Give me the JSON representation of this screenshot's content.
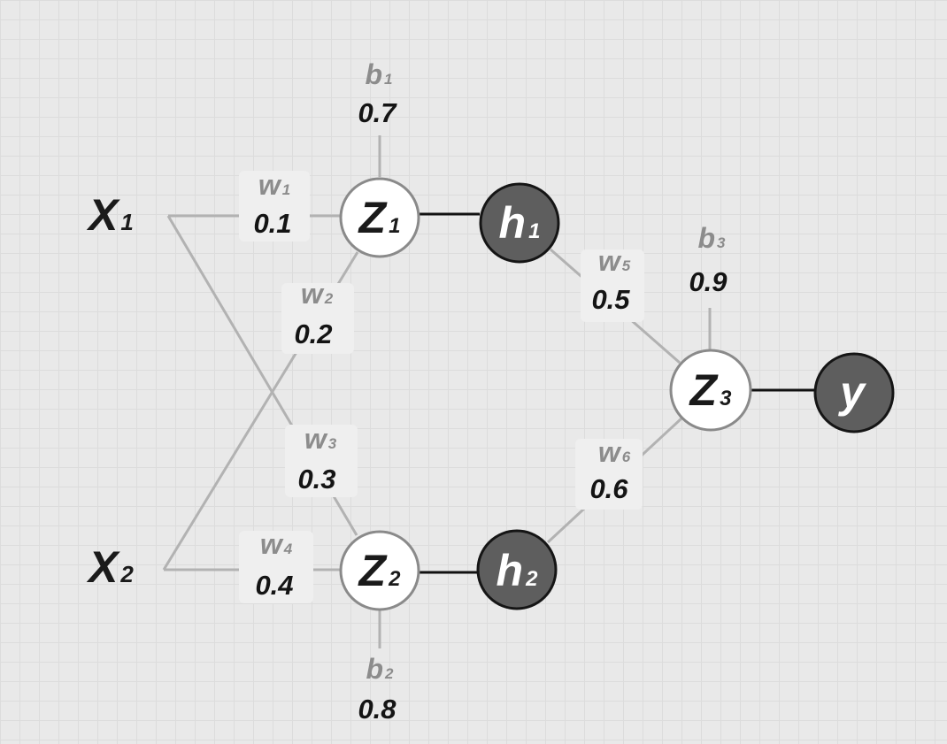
{
  "inputs": [
    {
      "letter": "X",
      "sub": "1"
    },
    {
      "letter": "X",
      "sub": "2"
    }
  ],
  "nodes": {
    "z1": {
      "letter": "Z",
      "sub": "1"
    },
    "z2": {
      "letter": "Z",
      "sub": "2"
    },
    "z3": {
      "letter": "Z",
      "sub": "3"
    },
    "h1": {
      "letter": "h",
      "sub": "1"
    },
    "h2": {
      "letter": "h",
      "sub": "2"
    },
    "y": {
      "letter": "y"
    }
  },
  "weights": [
    {
      "letter": "w",
      "sub": "1",
      "value": "0.1"
    },
    {
      "letter": "w",
      "sub": "2",
      "value": "0.2"
    },
    {
      "letter": "w",
      "sub": "3",
      "value": "0.3"
    },
    {
      "letter": "w",
      "sub": "4",
      "value": "0.4"
    },
    {
      "letter": "w",
      "sub": "5",
      "value": "0.5"
    },
    {
      "letter": "w",
      "sub": "6",
      "value": "0.6"
    }
  ],
  "biases": [
    {
      "letter": "b",
      "sub": "1",
      "value": "0.7"
    },
    {
      "letter": "b",
      "sub": "2",
      "value": "0.8"
    },
    {
      "letter": "b",
      "sub": "3",
      "value": "0.9"
    }
  ],
  "colors": {
    "background": "#e9e9e9",
    "grid": "#dcdcdc",
    "light_edge": "#b2b2b2",
    "dark_edge": "#111111",
    "open_node_fill": "#ffffff",
    "filled_node_fill": "#5e5e5e",
    "param_name": "#8c8c8c",
    "value_text": "#141414"
  }
}
